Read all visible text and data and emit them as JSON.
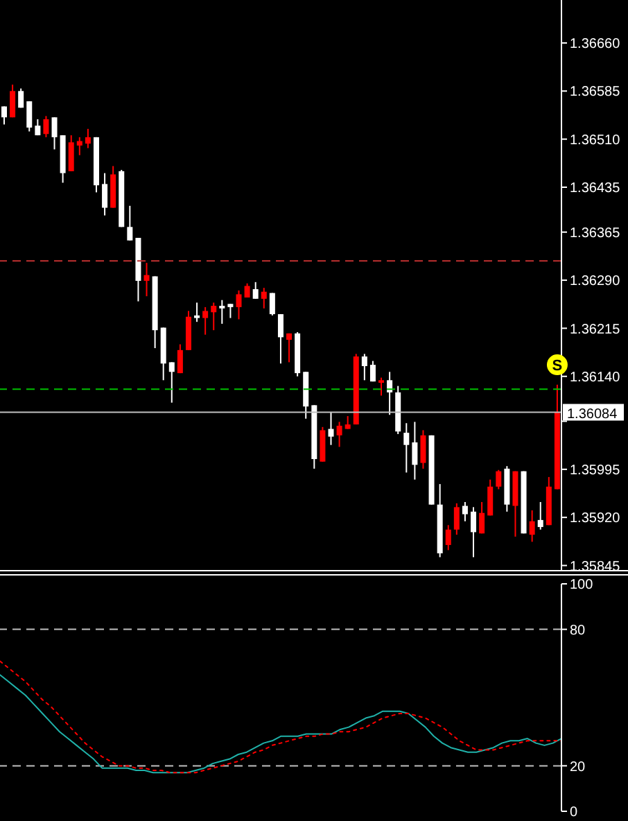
{
  "chart_data": [
    {
      "type": "candlestick",
      "categories": [
        null,
        null,
        null,
        null,
        null,
        null,
        null,
        null,
        null,
        null,
        null,
        null,
        null,
        null,
        null,
        null,
        null,
        null,
        null,
        null,
        null,
        null,
        null,
        null,
        null,
        null,
        null,
        null,
        null,
        null,
        null,
        null,
        null,
        null,
        null,
        null,
        null,
        null,
        null,
        null,
        null,
        null,
        null,
        null,
        null,
        null,
        null,
        null,
        null,
        null,
        null,
        null,
        null,
        null,
        null,
        null,
        null,
        null,
        null,
        null,
        null,
        null,
        null,
        null,
        null,
        null,
        null
      ],
      "ohlc": [
        [
          1.36561,
          1.36561,
          1.36533,
          1.36544
        ],
        [
          1.36544,
          1.36595,
          1.36544,
          1.36585
        ],
        [
          1.36585,
          1.36589,
          1.36559,
          1.36559
        ],
        [
          1.36569,
          1.36569,
          1.36522,
          1.36528
        ],
        [
          1.36531,
          1.36541,
          1.36516,
          1.36516
        ],
        [
          1.36518,
          1.36546,
          1.36513,
          1.36541
        ],
        [
          1.36544,
          1.36544,
          1.36494,
          1.36513
        ],
        [
          1.36516,
          1.36516,
          1.36442,
          1.36457
        ],
        [
          1.3646,
          1.36516,
          1.3646,
          1.36505
        ],
        [
          1.365,
          1.36513,
          1.36485,
          1.36507
        ],
        [
          1.36503,
          1.36526,
          1.36496,
          1.36513
        ],
        [
          1.36513,
          1.36513,
          1.36427,
          1.36438
        ],
        [
          1.3644,
          1.36457,
          1.36391,
          1.36403
        ],
        [
          1.36403,
          1.36468,
          1.36403,
          1.36455
        ],
        [
          1.3646,
          1.36462,
          1.36373,
          1.36373
        ],
        [
          1.36373,
          1.36406,
          1.36352,
          1.36352
        ],
        [
          1.36356,
          1.36356,
          1.36257,
          1.36289
        ],
        [
          1.36289,
          1.36317,
          1.36265,
          1.36298
        ],
        [
          1.36296,
          1.36296,
          1.36184,
          1.36212
        ],
        [
          1.36216,
          1.36216,
          1.36134,
          1.3616
        ],
        [
          1.36162,
          1.36162,
          1.36099,
          1.36147
        ],
        [
          1.36145,
          1.3619,
          1.36145,
          1.36181
        ],
        [
          1.36181,
          1.36242,
          1.36181,
          1.36233
        ],
        [
          1.36235,
          1.36255,
          1.36225,
          1.36231
        ],
        [
          1.36231,
          1.36248,
          1.36205,
          1.36242
        ],
        [
          1.3624,
          1.36255,
          1.36212,
          1.3625
        ],
        [
          1.3625,
          1.36259,
          1.36222,
          1.36246
        ],
        [
          1.36253,
          1.36253,
          1.36231,
          1.36248
        ],
        [
          1.36248,
          1.36274,
          1.36229,
          1.36268
        ],
        [
          1.36263,
          1.36285,
          1.36263,
          1.36281
        ],
        [
          1.36276,
          1.36287,
          1.36261,
          1.36261
        ],
        [
          1.36261,
          1.36278,
          1.36246,
          1.36272
        ],
        [
          1.3627,
          1.3627,
          1.36235,
          1.36237
        ],
        [
          1.36237,
          1.36237,
          1.3616,
          1.36201
        ],
        [
          1.36197,
          1.36207,
          1.36162,
          1.36207
        ],
        [
          1.36207,
          1.36209,
          1.3614,
          1.36145
        ],
        [
          1.36147,
          1.36147,
          1.36074,
          1.36093
        ],
        [
          1.36095,
          1.36095,
          1.35996,
          1.36011
        ],
        [
          1.36007,
          1.36061,
          1.36007,
          1.36056
        ],
        [
          1.36058,
          1.36084,
          1.36033,
          1.36046
        ],
        [
          1.36048,
          1.36069,
          1.3603,
          1.36063
        ],
        [
          1.36058,
          1.36078,
          1.36058,
          1.36065
        ],
        [
          1.36065,
          1.36175,
          1.36065,
          1.36171
        ],
        [
          1.36171,
          1.36175,
          1.36134,
          1.36156
        ],
        [
          1.36158,
          1.36164,
          1.36132,
          1.36132
        ],
        [
          1.3613,
          1.36138,
          1.3611,
          1.36134
        ],
        [
          1.36134,
          1.36147,
          1.3608,
          1.36115
        ],
        [
          1.36115,
          1.36125,
          1.3605,
          1.36054
        ],
        [
          1.36052,
          1.36067,
          1.3599,
          1.36033
        ],
        [
          1.36037,
          1.36069,
          1.35979,
          1.36002
        ],
        [
          1.36005,
          1.36056,
          1.35996,
          1.36048
        ],
        [
          1.36048,
          1.36048,
          1.3594,
          1.3594
        ],
        [
          1.3594,
          1.35972,
          1.35858,
          1.35864
        ],
        [
          1.35877,
          1.35908,
          1.35869,
          1.35901
        ],
        [
          1.35901,
          1.35942,
          1.35893,
          1.35936
        ],
        [
          1.35938,
          1.35944,
          1.35914,
          1.35925
        ],
        [
          1.35929,
          1.35936,
          1.35858,
          1.35897
        ],
        [
          1.35895,
          1.35944,
          1.35895,
          1.35927
        ],
        [
          1.35923,
          1.35979,
          1.35923,
          1.35968
        ],
        [
          1.35968,
          1.35994,
          1.35964,
          1.35992
        ],
        [
          1.35996,
          1.36,
          1.35929,
          1.3594
        ],
        [
          1.35938,
          1.35992,
          1.3589,
          1.35992
        ],
        [
          1.35992,
          1.35992,
          1.35895,
          1.35895
        ],
        [
          1.35893,
          1.35931,
          1.35882,
          1.35914
        ],
        [
          1.35916,
          1.35944,
          1.35901,
          1.35905
        ],
        [
          1.35908,
          1.35983,
          1.35908,
          1.35968
        ],
        [
          1.35964,
          1.36127,
          1.35964,
          1.36084
        ]
      ],
      "colors": [
        "#ffffff",
        "#ff0000",
        "#ffffff",
        "#ffffff",
        "#ffffff",
        "#ff0000",
        "#ffffff",
        "#ffffff",
        "#ff0000",
        "#ff0000",
        "#ff0000",
        "#ffffff",
        "#ffffff",
        "#ff0000",
        "#ffffff",
        "#ffffff",
        "#ffffff",
        "#ff0000",
        "#ffffff",
        "#ffffff",
        "#ffffff",
        "#ff0000",
        "#ff0000",
        "#ffffff",
        "#ff0000",
        "#ff0000",
        "#ffffff",
        "#ffffff",
        "#ff0000",
        "#ff0000",
        "#ffffff",
        "#ff0000",
        "#ffffff",
        "#ffffff",
        "#ff0000",
        "#ffffff",
        "#ffffff",
        "#ffffff",
        "#ff0000",
        "#ffffff",
        "#ff0000",
        "#ff0000",
        "#ff0000",
        "#ffffff",
        "#ffffff",
        "#ff0000",
        "#ffffff",
        "#ffffff",
        "#ffffff",
        "#ffffff",
        "#ff0000",
        "#ffffff",
        "#ffffff",
        "#ff0000",
        "#ff0000",
        "#ffffff",
        "#ffffff",
        "#ff0000",
        "#ff0000",
        "#ff0000",
        "#ffffff",
        "#ff0000",
        "#ffffff",
        "#ff0000",
        "#ffffff",
        "#ff0000",
        "#ff0000"
      ],
      "ylim": [
        1.35838,
        1.36727
      ],
      "yticks": [
        1.35845,
        {
          "value": 1.3592,
          "label": "1.35920"
        },
        1.35995,
        {
          "value": 1.3607,
          "label": null
        },
        {
          "value": 1.3614,
          "label": "1.36140"
        },
        1.36215,
        {
          "value": 1.3629,
          "label": "1.36290"
        },
        1.36365,
        1.36435,
        {
          "value": 1.3651,
          "label": "1.36510"
        },
        1.36585,
        {
          "value": 1.3666,
          "label": "1.36660"
        }
      ],
      "tick_labels": "y",
      "ref_lines": [
        {
          "axis": "y",
          "value": 1.3632,
          "color": "#c03030",
          "line_style": "dashed"
        },
        {
          "axis": "y",
          "value": 1.3612,
          "color": "#00c000",
          "line_style": "dashed"
        },
        {
          "axis": "y",
          "value": 1.36084,
          "label": "1.36084",
          "color": "#c0c0c0",
          "line_style": "solid"
        }
      ],
      "annotations": [
        {
          "text": "S",
          "y": 1.36158
        }
      ]
    },
    {
      "type": "line",
      "categories": [
        null,
        null,
        null,
        null,
        null,
        null,
        null,
        null,
        null,
        null,
        null,
        null,
        null,
        null,
        null,
        null,
        null,
        null,
        null,
        null,
        null,
        null,
        null,
        null,
        null,
        null,
        null,
        null,
        null,
        null,
        null,
        null,
        null,
        null,
        null,
        null,
        null,
        null,
        null,
        null,
        null,
        null,
        null,
        null,
        null,
        null,
        null,
        null,
        null,
        null,
        null,
        null,
        null,
        null,
        null,
        null,
        null,
        null,
        null,
        null,
        null,
        null,
        null,
        null,
        null,
        null,
        null
      ],
      "series": [
        {
          "color": "#20b2aa",
          "line_style": "solid",
          "values": [
            60,
            57,
            54,
            51,
            47,
            43,
            39,
            35,
            32,
            29,
            26,
            23,
            19,
            19,
            19,
            19,
            18,
            18,
            17,
            17,
            17,
            17,
            17,
            18,
            19,
            21,
            22,
            23,
            25,
            26,
            28,
            30,
            31,
            33,
            33,
            33,
            34,
            34,
            34,
            34,
            36,
            37,
            39,
            41,
            42,
            44,
            44,
            44,
            43,
            40,
            37,
            33,
            30,
            28,
            27,
            26,
            26,
            27,
            28,
            30,
            31,
            31,
            32,
            30,
            29,
            30,
            32
          ]
        },
        {
          "color": "#ff0000",
          "line_style": "dotted",
          "values": [
            66,
            63,
            60,
            57,
            53,
            49,
            46,
            42,
            38,
            34,
            30,
            27,
            24,
            22,
            20,
            20,
            19,
            19,
            18,
            18,
            17,
            17,
            17,
            17,
            18,
            19,
            20,
            21,
            22,
            24,
            26,
            27,
            29,
            30,
            31,
            32,
            33,
            33,
            34,
            34,
            35,
            35,
            36,
            37,
            39,
            41,
            42,
            43,
            43,
            42,
            41,
            39,
            37,
            34,
            31,
            29,
            27,
            27,
            27,
            28,
            29,
            30,
            31,
            31,
            31,
            31,
            31
          ]
        }
      ],
      "marker": "none",
      "ylim": [
        0,
        100
      ],
      "yticks": [
        0,
        20,
        80,
        100
      ],
      "tick_labels": "y",
      "ref_lines": [
        {
          "axis": "y",
          "value": 80,
          "color": "#c0c0c0",
          "line_style": "dashed"
        },
        {
          "axis": "y",
          "value": 20,
          "color": "#c0c0c0",
          "line_style": "dashed"
        }
      ]
    }
  ]
}
